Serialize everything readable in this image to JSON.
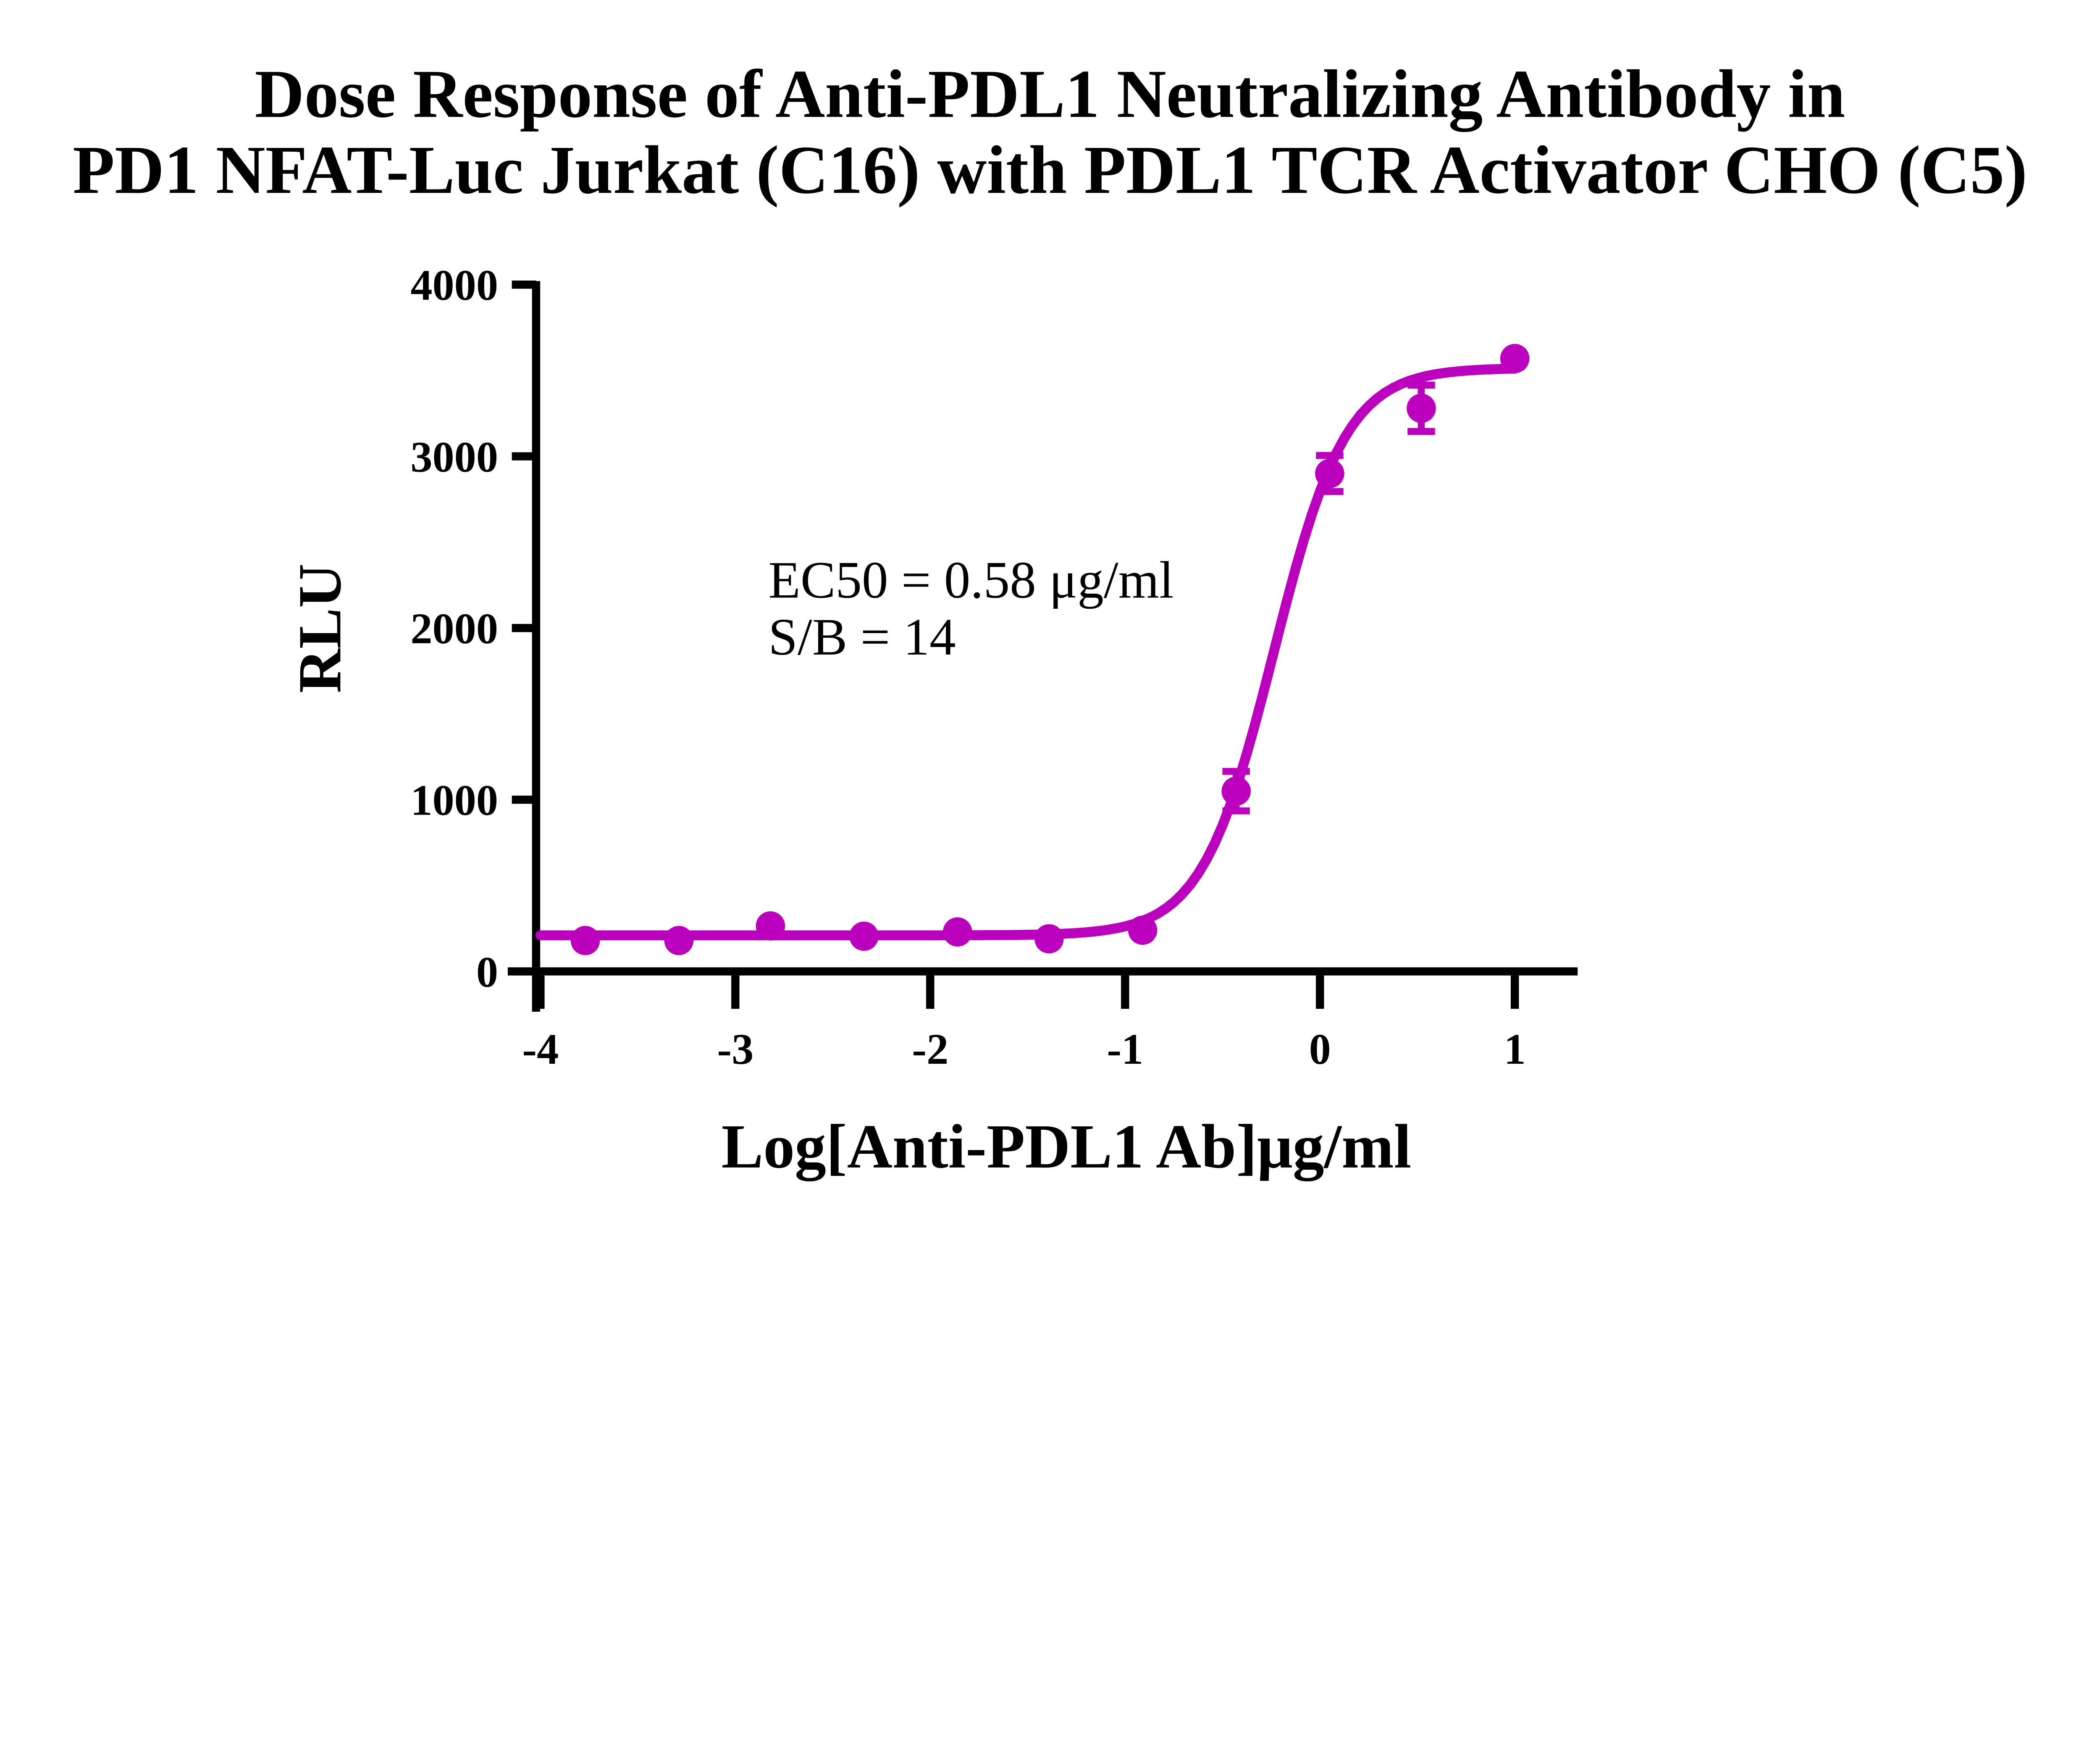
{
  "figure": {
    "title_line1": "Dose Response of Anti-PDL1 Neutralizing Antibody in",
    "title_line2": "PD1 NFAT-Luc Jurkat (C16) with PDL1 TCR Activator CHO (C5)",
    "background_color": "#FFFFFF",
    "axis_color": "#000000",
    "curve_color": "#BB00BE"
  },
  "chart_data": {
    "type": "scatter",
    "title": "Dose Response of Anti-PDL1 Neutralizing Antibody in PD1 NFAT-Luc Jurkat (C16) with PDL1 TCR Activator CHO (C5)",
    "xlabel": "Log[Anti-PDL1 Ab]μg/ml",
    "ylabel": "RLU",
    "xlim": [
      -4,
      1
    ],
    "ylim": [
      0,
      4000
    ],
    "grid": false,
    "legend_position": "none",
    "x_ticks": [
      -4,
      -3,
      -2,
      -1,
      0,
      1
    ],
    "y_ticks": [
      0,
      1000,
      2000,
      3000,
      4000
    ],
    "x_tick_labels": [
      "-4",
      "-3",
      "-2",
      "-1",
      "0",
      "1"
    ],
    "y_tick_labels": [
      "0",
      "1000",
      "2000",
      "3000",
      "4000"
    ],
    "series": [
      {
        "name": "Anti-PDL1 Ab",
        "marker": "circle",
        "color": "#BB00BE",
        "x": [
          -3.77,
          -3.29,
          -2.82,
          -2.34,
          -1.86,
          -1.39,
          -0.91,
          -0.43,
          0.05,
          0.52,
          1.0
        ],
        "y": [
          180,
          180,
          265,
          205,
          230,
          190,
          240,
          1050,
          2900,
          3280,
          3570
        ],
        "y_err": [
          0,
          0,
          0,
          0,
          0,
          0,
          0,
          115,
          105,
          135,
          0
        ]
      }
    ],
    "fit_curve": {
      "model": "4PL-logistic",
      "bottom": 210,
      "top": 3515,
      "log_ec50": -0.2366,
      "hill": 2.35
    },
    "annotations": {
      "ec50_text": "EC50 = 0.58 μg/ml",
      "sb_text": "S/B = 14",
      "ec50_value": "0.58",
      "ec50_units": "μg/ml",
      "signal_to_background": "14"
    }
  }
}
